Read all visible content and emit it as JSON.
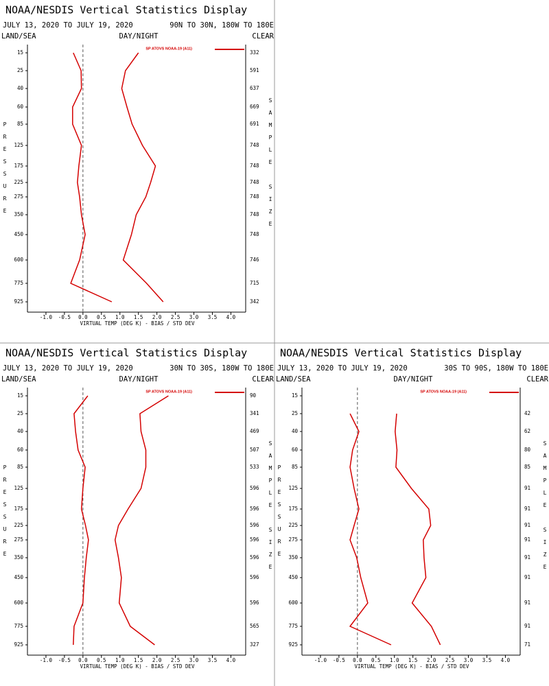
{
  "chart_data": [
    {
      "type": "line",
      "title": "NOAA/NESDIS Vertical Statistics Display",
      "subtitle": "JULY 13, 2020 TO JULY 19, 2020",
      "region": "90N TO 30N, 180W TO 180E",
      "left_label": "LAND/SEA",
      "center_label": "DAY/NIGHT",
      "right_label": "CLEAR",
      "ylabel": "PRESSURE",
      "y2label": "SAMPLE SIZE",
      "xlabel": "VIRTUAL TEMP (DEG K) - BIAS / STD DEV",
      "categories": [
        15,
        25,
        40,
        60,
        85,
        125,
        175,
        225,
        275,
        350,
        450,
        600,
        775,
        925
      ],
      "sample_size": [
        332,
        591,
        637,
        669,
        691,
        748,
        748,
        748,
        748,
        748,
        748,
        746,
        715,
        342
      ],
      "series": [
        {
          "name": "SP ATOVS NOAA-19 (A11)",
          "color": "#d40000",
          "values": [
            -0.26,
            -0.05,
            -0.04,
            -0.28,
            -0.28,
            -0.04,
            -0.11,
            -0.15,
            -0.09,
            -0.04,
            0.06,
            -0.09,
            -0.33,
            0.78
          ]
        },
        {
          "color": "#d40000",
          "values": [
            1.5,
            1.15,
            1.05,
            1.19,
            1.33,
            1.61,
            1.96,
            1.83,
            1.7,
            1.44,
            1.31,
            1.09,
            1.72,
            2.17
          ]
        }
      ],
      "xlim": [
        -1.5,
        4.4
      ],
      "xticks": [
        {
          "value": -1,
          "label": "-1.0"
        },
        -0.5,
        {
          "value": 0,
          "label": "0.0"
        },
        0.5,
        {
          "value": 1,
          "label": "1.0"
        },
        1.5,
        {
          "value": 2,
          "label": "2.0"
        },
        2.5,
        {
          "value": 3,
          "label": "3.0"
        },
        3.5,
        {
          "value": 4,
          "label": "4.0"
        }
      ],
      "zero_line": true
    },
    {
      "type": "line",
      "title": "NOAA/NESDIS Vertical Statistics Display",
      "subtitle": "JULY 13, 2020 TO JULY 19, 2020",
      "region": "30N TO 30S, 180W TO 180E",
      "left_label": "LAND/SEA",
      "center_label": "DAY/NIGHT",
      "right_label": "CLEAR",
      "ylabel": "PRESSURE",
      "y2label": "SAMPLE SIZE",
      "xlabel": "VIRTUAL TEMP (DEG K) - BIAS / STD DEV",
      "categories": [
        15,
        25,
        40,
        60,
        85,
        125,
        175,
        225,
        275,
        350,
        450,
        600,
        775,
        925
      ],
      "sample_size": [
        90,
        341,
        469,
        507,
        533,
        596,
        596,
        596,
        596,
        596,
        596,
        596,
        565,
        327
      ],
      "series": [
        {
          "name": "SP ATOVS NOAA-19 (A11)",
          "color": "#d40000",
          "values": [
            0.13,
            -0.24,
            -0.2,
            -0.13,
            0.06,
            0,
            -0.04,
            0.07,
            0.15,
            0.09,
            0.04,
            0,
            -0.24,
            -0.26
          ]
        },
        {
          "color": "#d40000",
          "values": [
            2.31,
            1.54,
            1.57,
            1.7,
            1.7,
            1.57,
            1.22,
            0.96,
            0.87,
            0.96,
            1.04,
            0.98,
            1.28,
            1.94
          ]
        }
      ],
      "xlim": [
        -1.5,
        4.4
      ],
      "xticks": [
        {
          "value": -1,
          "label": "-1.0"
        },
        -0.5,
        {
          "value": 0,
          "label": "0.0"
        },
        0.5,
        {
          "value": 1,
          "label": "1.0"
        },
        1.5,
        {
          "value": 2,
          "label": "2.0"
        },
        2.5,
        {
          "value": 3,
          "label": "3.0"
        },
        3.5,
        {
          "value": 4,
          "label": "4.0"
        }
      ],
      "zero_line": true
    },
    {
      "type": "line",
      "title": "NOAA/NESDIS Vertical Statistics Display",
      "subtitle": "JULY 13, 2020 TO JULY 19, 2020",
      "region": "30S TO 90S, 180W TO 180E",
      "left_label": "LAND/SEA",
      "center_label": "DAY/NIGHT",
      "right_label": "CLEAR",
      "ylabel": "PRESSURE",
      "y2label": "SAMPLE SIZE",
      "xlabel": "VIRTUAL TEMP (DEG K) - BIAS / STD DEV",
      "categories": [
        15,
        25,
        40,
        60,
        85,
        125,
        175,
        225,
        275,
        350,
        450,
        600,
        775,
        925
      ],
      "sample_size": [
        null,
        42,
        62,
        80,
        85,
        91,
        91,
        91,
        91,
        91,
        91,
        91,
        91,
        71
      ],
      "series": [
        {
          "name": "SP ATOVS NOAA-19 (A11)",
          "color": "#d40000",
          "values": [
            null,
            -0.2,
            0.04,
            -0.13,
            -0.2,
            -0.09,
            0.04,
            -0.09,
            -0.2,
            -0.02,
            0.09,
            0.28,
            -0.2,
            0.91
          ]
        },
        {
          "color": "#d40000",
          "values": [
            null,
            1.06,
            1.02,
            1.07,
            1.04,
            1.46,
            1.93,
            1.98,
            1.78,
            1.8,
            1.85,
            1.48,
            2.0,
            2.24
          ]
        }
      ],
      "xlim": [
        -1.5,
        4.4
      ],
      "xticks": [
        {
          "value": -1,
          "label": "-1.0"
        },
        -0.5,
        {
          "value": 0,
          "label": "0.0"
        },
        0.5,
        {
          "value": 1,
          "label": "1.0"
        },
        1.5,
        {
          "value": 2,
          "label": "2.0"
        },
        2.5,
        {
          "value": 3,
          "label": "3.0"
        },
        3.5,
        {
          "value": 4,
          "label": "4.0"
        }
      ],
      "zero_line": true
    }
  ]
}
